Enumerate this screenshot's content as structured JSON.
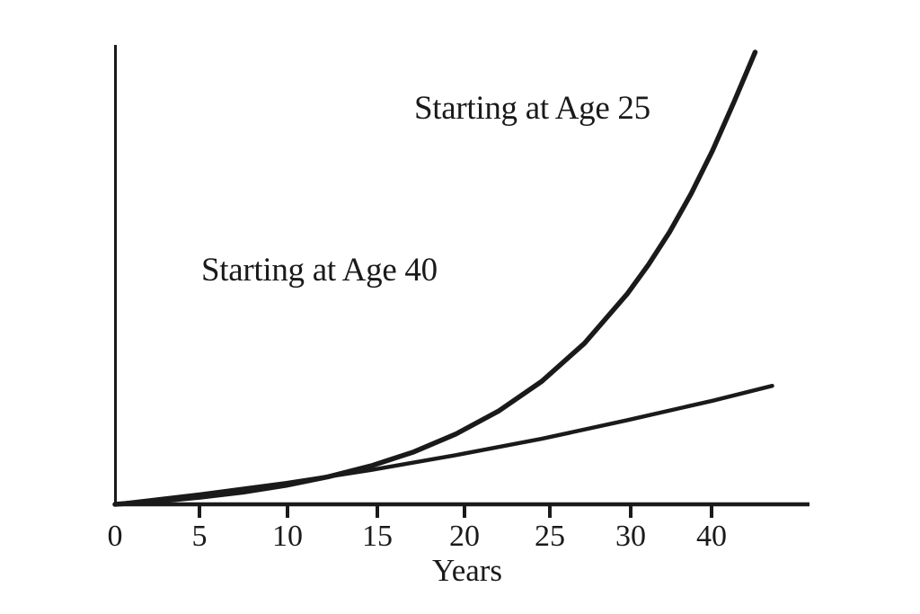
{
  "chart_data": {
    "type": "line",
    "title": "",
    "xlabel": "Years",
    "ylabel": "",
    "x_tick_labels": [
      "0",
      "5",
      "10",
      "15",
      "20",
      "25",
      "30",
      "40"
    ],
    "y_tick_labels": [],
    "ylim": [
      0,
      100
    ],
    "y_scale_note": "y-axis unlabeled; values are relative growth estimated 0-100 from plot height",
    "grid": false,
    "legend_position": "inline-annotations",
    "line_color": "#1a1a1a",
    "background_color": "#ffffff",
    "series": [
      {
        "name": "Starting at Age 25",
        "shape": "exponential",
        "points": [
          [
            0,
            0
          ],
          [
            2.5,
            0.7
          ],
          [
            5,
            1.6
          ],
          [
            7.5,
            2.7
          ],
          [
            10,
            4.2
          ],
          [
            12.5,
            6.1
          ],
          [
            15,
            8.5
          ],
          [
            17.5,
            11.6
          ],
          [
            20,
            15.6
          ],
          [
            22.5,
            20.7
          ],
          [
            25,
            27.2
          ],
          [
            27.5,
            35.6
          ],
          [
            30,
            46.5
          ],
          [
            31.25,
            53.0
          ],
          [
            32.5,
            60.3
          ],
          [
            33.75,
            68.7
          ],
          [
            35,
            78.2
          ],
          [
            36.25,
            88.9
          ],
          [
            37.5,
            100
          ]
        ]
      },
      {
        "name": "Starting at Age 40",
        "shape": "shallow-growth",
        "points": [
          [
            0,
            0
          ],
          [
            5,
            2.2
          ],
          [
            10,
            4.7
          ],
          [
            15,
            7.6
          ],
          [
            20,
            10.9
          ],
          [
            25,
            14.5
          ],
          [
            30,
            18.6
          ],
          [
            35,
            22.9
          ],
          [
            38.5,
            26.2
          ]
        ]
      }
    ]
  }
}
